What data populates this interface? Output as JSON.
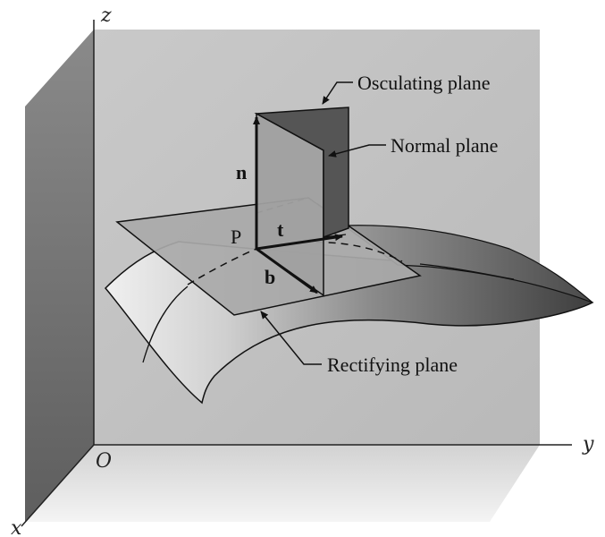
{
  "axes": {
    "z": "z",
    "y": "y",
    "x": "x",
    "origin": "O"
  },
  "point": "P",
  "vectors": {
    "normal": "n",
    "tangent": "t",
    "binormal": "b"
  },
  "callouts": {
    "osculating": "Osculating plane",
    "normal": "Normal plane",
    "rectifying": "Rectifying plane"
  },
  "colors": {
    "back_wall": "#c4c4c4",
    "left_wall": "#707070",
    "floor": "#e2e2e2",
    "plane_gray": "#a9a9a9",
    "osculating_dark": "#555555",
    "surface_dark": "#5c5c5c",
    "surface_light": "#e4e4e4"
  }
}
